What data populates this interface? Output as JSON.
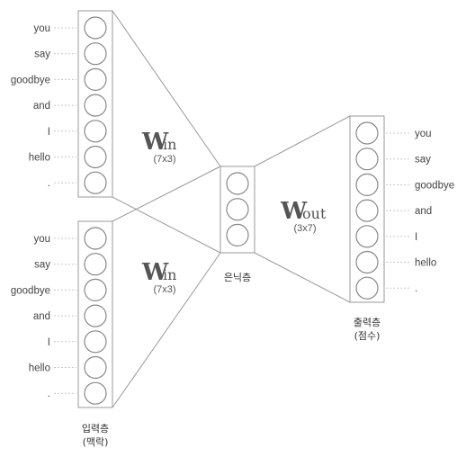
{
  "words": [
    "you",
    "say",
    "goodbye",
    "and",
    "I",
    "hello",
    "."
  ],
  "input_layer_label": [
    "입력층",
    "(맥락)"
  ],
  "hidden_layer_label": "은닉층",
  "output_layer_label": [
    "출력층",
    "(점수)"
  ],
  "w_in": {
    "letter": "W",
    "sub": "in",
    "dim": "(7x3)"
  },
  "w_out": {
    "letter": "W",
    "sub": "out",
    "dim": "(3x7)"
  },
  "hidden_neurons": 3
}
